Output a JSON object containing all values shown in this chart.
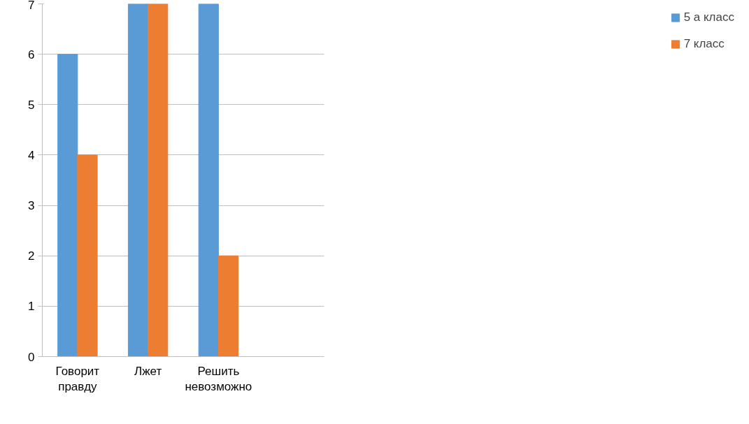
{
  "chart_data": {
    "type": "bar",
    "categories": [
      "Говорит правду",
      "Лжет",
      "Решить невозможно",
      null
    ],
    "series": [
      {
        "name": "5 а класс",
        "color": "#5b9bd5",
        "values": [
          6,
          7,
          7,
          null
        ]
      },
      {
        "name": "7 класс",
        "color": "#ed7d31",
        "values": [
          4,
          7,
          2,
          null
        ]
      }
    ],
    "ylim": [
      0,
      7
    ],
    "yticks": [
      0,
      1,
      2,
      3,
      4,
      5,
      6,
      7
    ],
    "grid": "y",
    "legend": "right"
  }
}
